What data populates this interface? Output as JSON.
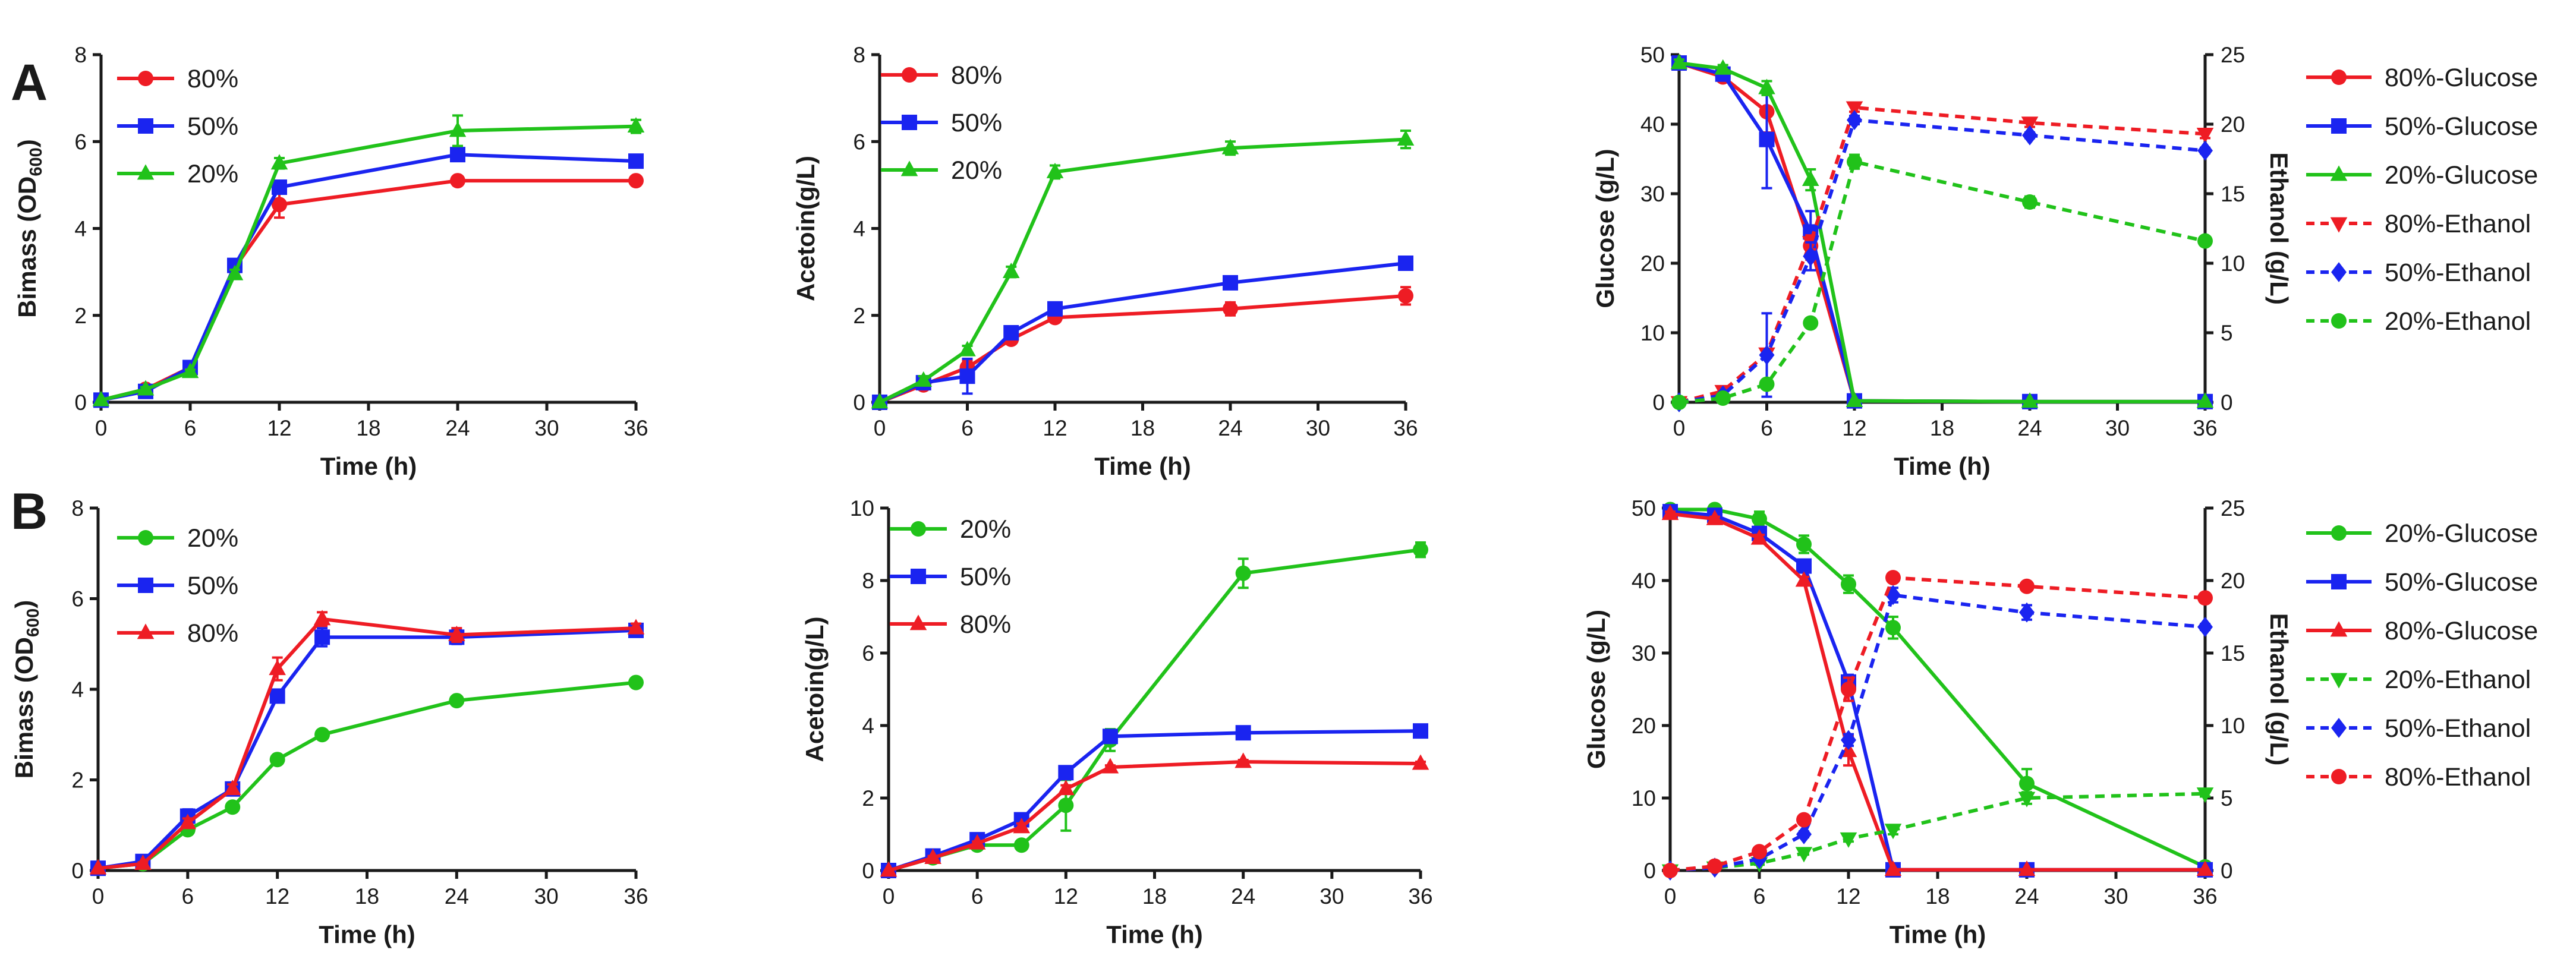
{
  "figure": {
    "row_labels": [
      "A",
      "B"
    ],
    "colors": {
      "red": "#ee1c24",
      "blue": "#1a24f0",
      "green": "#21c21a",
      "axis": "#1a1a1a"
    }
  },
  "chart_data": [
    {
      "id": "A1",
      "type": "line",
      "row_label": "A",
      "xlabel": "Time (h)",
      "ylabel": "Bimass (OD",
      "ylabel_sub": "600",
      "ylabel_tail": ")",
      "xlim": [
        0,
        36
      ],
      "xticks": [
        0,
        6,
        12,
        18,
        24,
        30,
        36
      ],
      "ylim": [
        0,
        8
      ],
      "yticks": [
        0,
        2,
        4,
        6,
        8
      ],
      "series": [
        {
          "name": "80%",
          "color": "red",
          "marker": "circle",
          "dash": false,
          "axis": "left",
          "x": [
            0,
            3,
            6,
            9,
            12,
            24,
            36
          ],
          "y": [
            0.05,
            0.3,
            0.8,
            3.1,
            4.55,
            5.1,
            5.1
          ],
          "err": [
            0,
            0.05,
            0.08,
            0.1,
            0.3,
            0.1,
            0.05
          ]
        },
        {
          "name": "50%",
          "color": "blue",
          "marker": "square",
          "dash": false,
          "axis": "left",
          "x": [
            0,
            3,
            6,
            9,
            12,
            24,
            36
          ],
          "y": [
            0.05,
            0.25,
            0.8,
            3.15,
            4.95,
            5.7,
            5.55
          ],
          "err": [
            0,
            0.05,
            0.05,
            0.1,
            0.1,
            0.1,
            0.05
          ]
        },
        {
          "name": "20%",
          "color": "green",
          "marker": "triangle",
          "dash": false,
          "axis": "left",
          "x": [
            0,
            3,
            6,
            9,
            12,
            24,
            36
          ],
          "y": [
            0.05,
            0.3,
            0.7,
            2.95,
            5.5,
            6.25,
            6.35
          ],
          "err": [
            0,
            0.05,
            0.05,
            0.1,
            0.12,
            0.35,
            0.15
          ]
        }
      ]
    },
    {
      "id": "A2",
      "type": "line",
      "xlabel": "Time (h)",
      "ylabel": "Acetoin(g/L)",
      "xlim": [
        0,
        36
      ],
      "xticks": [
        0,
        6,
        12,
        18,
        24,
        30,
        36
      ],
      "ylim": [
        0,
        8
      ],
      "yticks": [
        0,
        2,
        4,
        6,
        8
      ],
      "series": [
        {
          "name": "80%",
          "color": "red",
          "marker": "circle",
          "dash": false,
          "axis": "left",
          "x": [
            0,
            3,
            6,
            9,
            12,
            24,
            36
          ],
          "y": [
            0,
            0.4,
            0.8,
            1.45,
            1.95,
            2.15,
            2.45
          ],
          "err": [
            0,
            0.1,
            0.15,
            0.1,
            0.05,
            0.15,
            0.2
          ]
        },
        {
          "name": "50%",
          "color": "blue",
          "marker": "square",
          "dash": false,
          "axis": "left",
          "x": [
            0,
            3,
            6,
            9,
            12,
            24,
            36
          ],
          "y": [
            0,
            0.45,
            0.6,
            1.6,
            2.15,
            2.75,
            3.2
          ],
          "err": [
            0,
            0.1,
            0.4,
            0.1,
            0.08,
            0.1,
            0.15
          ]
        },
        {
          "name": "20%",
          "color": "green",
          "marker": "triangle",
          "dash": false,
          "axis": "left",
          "x": [
            0,
            3,
            6,
            9,
            12,
            24,
            36
          ],
          "y": [
            0,
            0.5,
            1.2,
            3.0,
            5.3,
            5.85,
            6.05
          ],
          "err": [
            0,
            0.1,
            0.1,
            0.12,
            0.15,
            0.15,
            0.2
          ]
        }
      ]
    },
    {
      "id": "A3",
      "type": "line",
      "xlabel": "Time (h)",
      "ylabel": "Glucose (g/L)",
      "y2label": "Ethanol (g/L)",
      "xlim": [
        0,
        36
      ],
      "xticks": [
        0,
        6,
        12,
        18,
        24,
        30,
        36
      ],
      "ylim": [
        0,
        50
      ],
      "yticks": [
        0,
        10,
        20,
        30,
        40,
        50
      ],
      "y2lim": [
        0,
        25
      ],
      "y2ticks": [
        0,
        5,
        10,
        15,
        20,
        25
      ],
      "series": [
        {
          "name": "80%-Glucose",
          "color": "red",
          "marker": "circle",
          "dash": false,
          "axis": "left",
          "x": [
            0,
            3,
            6,
            9,
            12,
            24,
            36
          ],
          "y": [
            48.8,
            46.8,
            41.8,
            22.5,
            0.2,
            0.1,
            0.1
          ],
          "err": [
            0.5,
            0.5,
            3,
            2,
            0,
            0,
            0
          ]
        },
        {
          "name": "50%-Glucose",
          "color": "blue",
          "marker": "square",
          "dash": false,
          "axis": "left",
          "x": [
            0,
            3,
            6,
            9,
            12,
            24,
            36
          ],
          "y": [
            48.8,
            47.2,
            37.8,
            24.5,
            0.2,
            0.1,
            0.1
          ],
          "err": [
            0.5,
            0.5,
            7,
            3,
            0,
            0,
            0
          ]
        },
        {
          "name": "20%-Glucose",
          "color": "green",
          "marker": "triangle",
          "dash": false,
          "axis": "left",
          "x": [
            0,
            3,
            6,
            9,
            12,
            24,
            36
          ],
          "y": [
            48.8,
            48.0,
            45.2,
            32.0,
            0.2,
            0.1,
            0.1
          ],
          "err": [
            0.5,
            0.5,
            1,
            1.5,
            0,
            0,
            0
          ]
        },
        {
          "name": "80%-Ethanol",
          "color": "red",
          "marker": "triangle-down",
          "dash": true,
          "axis": "right",
          "x": [
            0,
            3,
            6,
            9,
            12,
            24,
            36
          ],
          "y": [
            0,
            0.8,
            3.5,
            11.5,
            21.2,
            20.1,
            19.3
          ],
          "err": [
            0,
            0.1,
            0.3,
            0.5,
            0.3,
            0.3,
            0.3
          ]
        },
        {
          "name": "50%-Ethanol",
          "color": "blue",
          "marker": "diamond",
          "dash": true,
          "axis": "right",
          "x": [
            0,
            3,
            6,
            9,
            12,
            24,
            36
          ],
          "y": [
            0,
            0.5,
            3.4,
            10.5,
            20.3,
            19.2,
            18.1
          ],
          "err": [
            0,
            0.1,
            3,
            1,
            0.3,
            0.2,
            0.2
          ]
        },
        {
          "name": "20%-Ethanol",
          "color": "green",
          "marker": "circle",
          "dash": true,
          "axis": "right",
          "x": [
            0,
            3,
            6,
            9,
            12,
            24,
            36
          ],
          "y": [
            0,
            0.3,
            1.3,
            5.7,
            17.3,
            14.4,
            11.6
          ],
          "err": [
            0,
            0.1,
            0.2,
            0.3,
            0.5,
            0.4,
            0.3
          ]
        }
      ]
    },
    {
      "id": "B1",
      "type": "line",
      "row_label": "B",
      "xlabel": "Time (h)",
      "ylabel": "Bimass (OD",
      "ylabel_sub": "600",
      "ylabel_tail": ")",
      "xlim": [
        0,
        36
      ],
      "xticks": [
        0,
        6,
        12,
        18,
        24,
        30,
        36
      ],
      "ylim": [
        0,
        8
      ],
      "yticks": [
        0,
        2,
        4,
        6,
        8
      ],
      "series": [
        {
          "name": "20%",
          "color": "green",
          "marker": "circle",
          "dash": false,
          "axis": "left",
          "x": [
            0,
            3,
            6,
            9,
            12,
            15,
            24,
            36
          ],
          "y": [
            0.05,
            0.15,
            0.9,
            1.4,
            2.45,
            3.0,
            3.75,
            4.15
          ],
          "err": [
            0,
            0.03,
            0.05,
            0.05,
            0.05,
            0.05,
            0.05,
            0.05
          ]
        },
        {
          "name": "50%",
          "color": "blue",
          "marker": "square",
          "dash": false,
          "axis": "left",
          "x": [
            0,
            3,
            6,
            9,
            12,
            15,
            24,
            36
          ],
          "y": [
            0.05,
            0.2,
            1.2,
            1.8,
            3.85,
            5.15,
            5.15,
            5.3
          ],
          "err": [
            0,
            0.03,
            0.15,
            0.1,
            0.1,
            0.2,
            0.15,
            0.1
          ]
        },
        {
          "name": "80%",
          "color": "red",
          "marker": "triangle",
          "dash": false,
          "axis": "left",
          "x": [
            0,
            3,
            6,
            9,
            12,
            15,
            24,
            36
          ],
          "y": [
            0.05,
            0.15,
            1.05,
            1.8,
            4.45,
            5.55,
            5.2,
            5.35
          ],
          "err": [
            0,
            0.03,
            0.1,
            0.1,
            0.25,
            0.15,
            0.15,
            0.1
          ]
        }
      ]
    },
    {
      "id": "B2",
      "type": "line",
      "xlabel": "Time (h)",
      "ylabel": "Acetoin(g/L)",
      "xlim": [
        0,
        36
      ],
      "xticks": [
        0,
        6,
        12,
        18,
        24,
        30,
        36
      ],
      "ylim": [
        0,
        10
      ],
      "yticks": [
        0,
        2,
        4,
        6,
        8,
        10
      ],
      "series": [
        {
          "name": "20%",
          "color": "green",
          "marker": "circle",
          "dash": false,
          "axis": "left",
          "x": [
            0,
            3,
            6,
            9,
            12,
            15,
            24,
            36
          ],
          "y": [
            0,
            0.35,
            0.7,
            0.7,
            1.8,
            3.6,
            8.2,
            8.85
          ],
          "err": [
            0,
            0.05,
            0.05,
            0.05,
            0.7,
            0.3,
            0.4,
            0.2
          ]
        },
        {
          "name": "50%",
          "color": "blue",
          "marker": "square",
          "dash": false,
          "axis": "left",
          "x": [
            0,
            3,
            6,
            9,
            12,
            15,
            24,
            36
          ],
          "y": [
            0,
            0.4,
            0.85,
            1.4,
            2.7,
            3.7,
            3.8,
            3.85
          ],
          "err": [
            0,
            0.05,
            0.05,
            0.1,
            0.1,
            0.1,
            0.1,
            0.15
          ]
        },
        {
          "name": "80%",
          "color": "red",
          "marker": "triangle",
          "dash": false,
          "axis": "left",
          "x": [
            0,
            3,
            6,
            9,
            12,
            15,
            24,
            36
          ],
          "y": [
            0,
            0.35,
            0.75,
            1.2,
            2.25,
            2.85,
            3.0,
            2.95
          ],
          "err": [
            0,
            0.05,
            0.05,
            0.1,
            0.1,
            0.05,
            0.05,
            0.05
          ]
        }
      ]
    },
    {
      "id": "B3",
      "type": "line",
      "xlabel": "Time (h)",
      "ylabel": "Glucose (g/L)",
      "y2label": "Ethanol (g/L)",
      "xlim": [
        0,
        36
      ],
      "xticks": [
        0,
        6,
        12,
        18,
        24,
        30,
        36
      ],
      "ylim": [
        0,
        50
      ],
      "yticks": [
        0,
        10,
        20,
        30,
        40,
        50
      ],
      "y2lim": [
        0,
        25
      ],
      "y2ticks": [
        0,
        5,
        10,
        15,
        20,
        25
      ],
      "series": [
        {
          "name": "20%-Glucose",
          "color": "green",
          "marker": "circle",
          "dash": false,
          "axis": "left",
          "x": [
            0,
            3,
            6,
            9,
            12,
            15,
            24,
            36
          ],
          "y": [
            49.8,
            49.8,
            48.5,
            45.0,
            39.5,
            33.5,
            12.0,
            0.5
          ],
          "err": [
            0.3,
            0.3,
            1,
            1.2,
            1.2,
            1.5,
            2,
            0.3
          ]
        },
        {
          "name": "50%-Glucose",
          "color": "blue",
          "marker": "square",
          "dash": false,
          "axis": "left",
          "x": [
            0,
            3,
            6,
            9,
            12,
            15,
            24,
            36
          ],
          "y": [
            49.5,
            49.0,
            46.5,
            42.0,
            26.0,
            0.1,
            0.1,
            0.1
          ],
          "err": [
            0.3,
            0.3,
            0.5,
            0.5,
            1,
            0,
            0,
            0
          ]
        },
        {
          "name": "80%-Glucose",
          "color": "red",
          "marker": "triangle",
          "dash": false,
          "axis": "left",
          "x": [
            0,
            3,
            6,
            9,
            12,
            15,
            24,
            36
          ],
          "y": [
            49.2,
            48.5,
            45.8,
            40.0,
            16.5,
            0.1,
            0.1,
            0.1
          ],
          "err": [
            0.3,
            0.3,
            0.5,
            0.5,
            2,
            0,
            0,
            0
          ]
        },
        {
          "name": "20%-Ethanol",
          "color": "green",
          "marker": "triangle-down",
          "dash": true,
          "axis": "right",
          "x": [
            0,
            3,
            6,
            9,
            12,
            15,
            24,
            36
          ],
          "y": [
            0,
            0.2,
            0.5,
            1.2,
            2.2,
            2.8,
            5.0,
            5.3
          ],
          "err": [
            0,
            0.05,
            0.1,
            0.1,
            0.2,
            0.3,
            0.4,
            0.2
          ]
        },
        {
          "name": "50%-Ethanol",
          "color": "blue",
          "marker": "diamond",
          "dash": true,
          "axis": "right",
          "x": [
            0,
            3,
            6,
            9,
            12,
            15,
            24,
            36
          ],
          "y": [
            0,
            0.2,
            0.8,
            2.5,
            9.0,
            19.0,
            17.8,
            16.8
          ],
          "err": [
            0,
            0.05,
            0.1,
            0.2,
            0.4,
            0.5,
            0.5,
            0.2
          ]
        },
        {
          "name": "80%-Ethanol",
          "color": "red",
          "marker": "circle",
          "dash": true,
          "axis": "right",
          "x": [
            0,
            3,
            6,
            9,
            12,
            15,
            24,
            36
          ],
          "y": [
            0,
            0.3,
            1.3,
            3.5,
            12.5,
            20.2,
            19.6,
            18.8
          ],
          "err": [
            0,
            0.05,
            0.1,
            0.3,
            0.8,
            0.3,
            0.2,
            0.2
          ]
        }
      ]
    }
  ]
}
